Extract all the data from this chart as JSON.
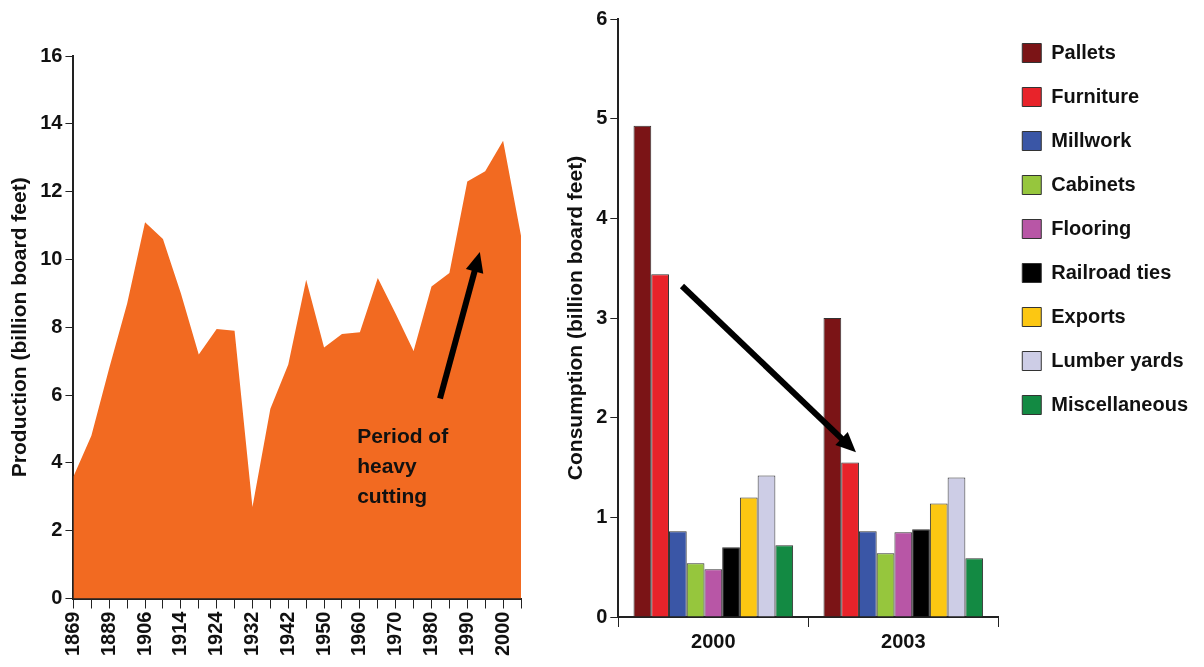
{
  "chart_data": [
    {
      "type": "area",
      "ylabel": "Production (billion board feet)",
      "categories": [
        "1869",
        null,
        "1889",
        null,
        "1906",
        null,
        "1914",
        null,
        "1924",
        null,
        "1932",
        null,
        "1942",
        null,
        "1950",
        null,
        "1960",
        null,
        "1970",
        null,
        "1980",
        null,
        "1990",
        null,
        "2000",
        null
      ],
      "series": [
        {
          "color": "#f26a21",
          "values": [
            3.6,
            4.8,
            6.8,
            8.7,
            11.1,
            10.6,
            9.0,
            7.2,
            7.95,
            7.9,
            2.7,
            5.6,
            6.9,
            9.4,
            7.4,
            7.8,
            7.85,
            9.45,
            8.4,
            7.3,
            9.2,
            9.6,
            12.3,
            12.6,
            13.5,
            10.7
          ]
        }
      ],
      "ylim": [
        0,
        16
      ],
      "yticks": [
        0,
        2,
        4,
        6,
        8,
        10,
        12,
        14,
        16
      ],
      "annotations": [
        "Period of heavy cutting"
      ]
    },
    {
      "type": "bar",
      "ylabel": "Consumption (billion board feet)",
      "categories": [
        "2000",
        "2003"
      ],
      "legend": "top right",
      "ylim": [
        0,
        6
      ],
      "yticks": [
        0,
        1,
        2,
        3,
        4,
        5,
        6
      ],
      "series": [
        {
          "name": "Pallets",
          "color": "#7b1416",
          "values": [
            4.93,
            3.0
          ]
        },
        {
          "name": "Furniture",
          "color": "#e8232a",
          "values": [
            3.44,
            1.55
          ]
        },
        {
          "name": "Millwork",
          "color": "#3a56a6",
          "values": [
            0.86,
            0.86
          ]
        },
        {
          "name": "Cabinets",
          "color": "#96c63d",
          "values": [
            0.54,
            0.64
          ]
        },
        {
          "name": "Flooring",
          "color": "#b856a6",
          "values": [
            0.48,
            0.85
          ]
        },
        {
          "name": "Railroad ties",
          "color": "#000000",
          "values": [
            0.7,
            0.88
          ]
        },
        {
          "name": "Exports",
          "color": "#fcc712",
          "values": [
            1.2,
            1.14
          ]
        },
        {
          "name": "Lumber yards",
          "color": "#cdcde6",
          "values": [
            1.42,
            1.4
          ]
        },
        {
          "name": "Miscellaneous",
          "color": "#138a43",
          "values": [
            0.72,
            0.59
          ]
        }
      ]
    }
  ]
}
